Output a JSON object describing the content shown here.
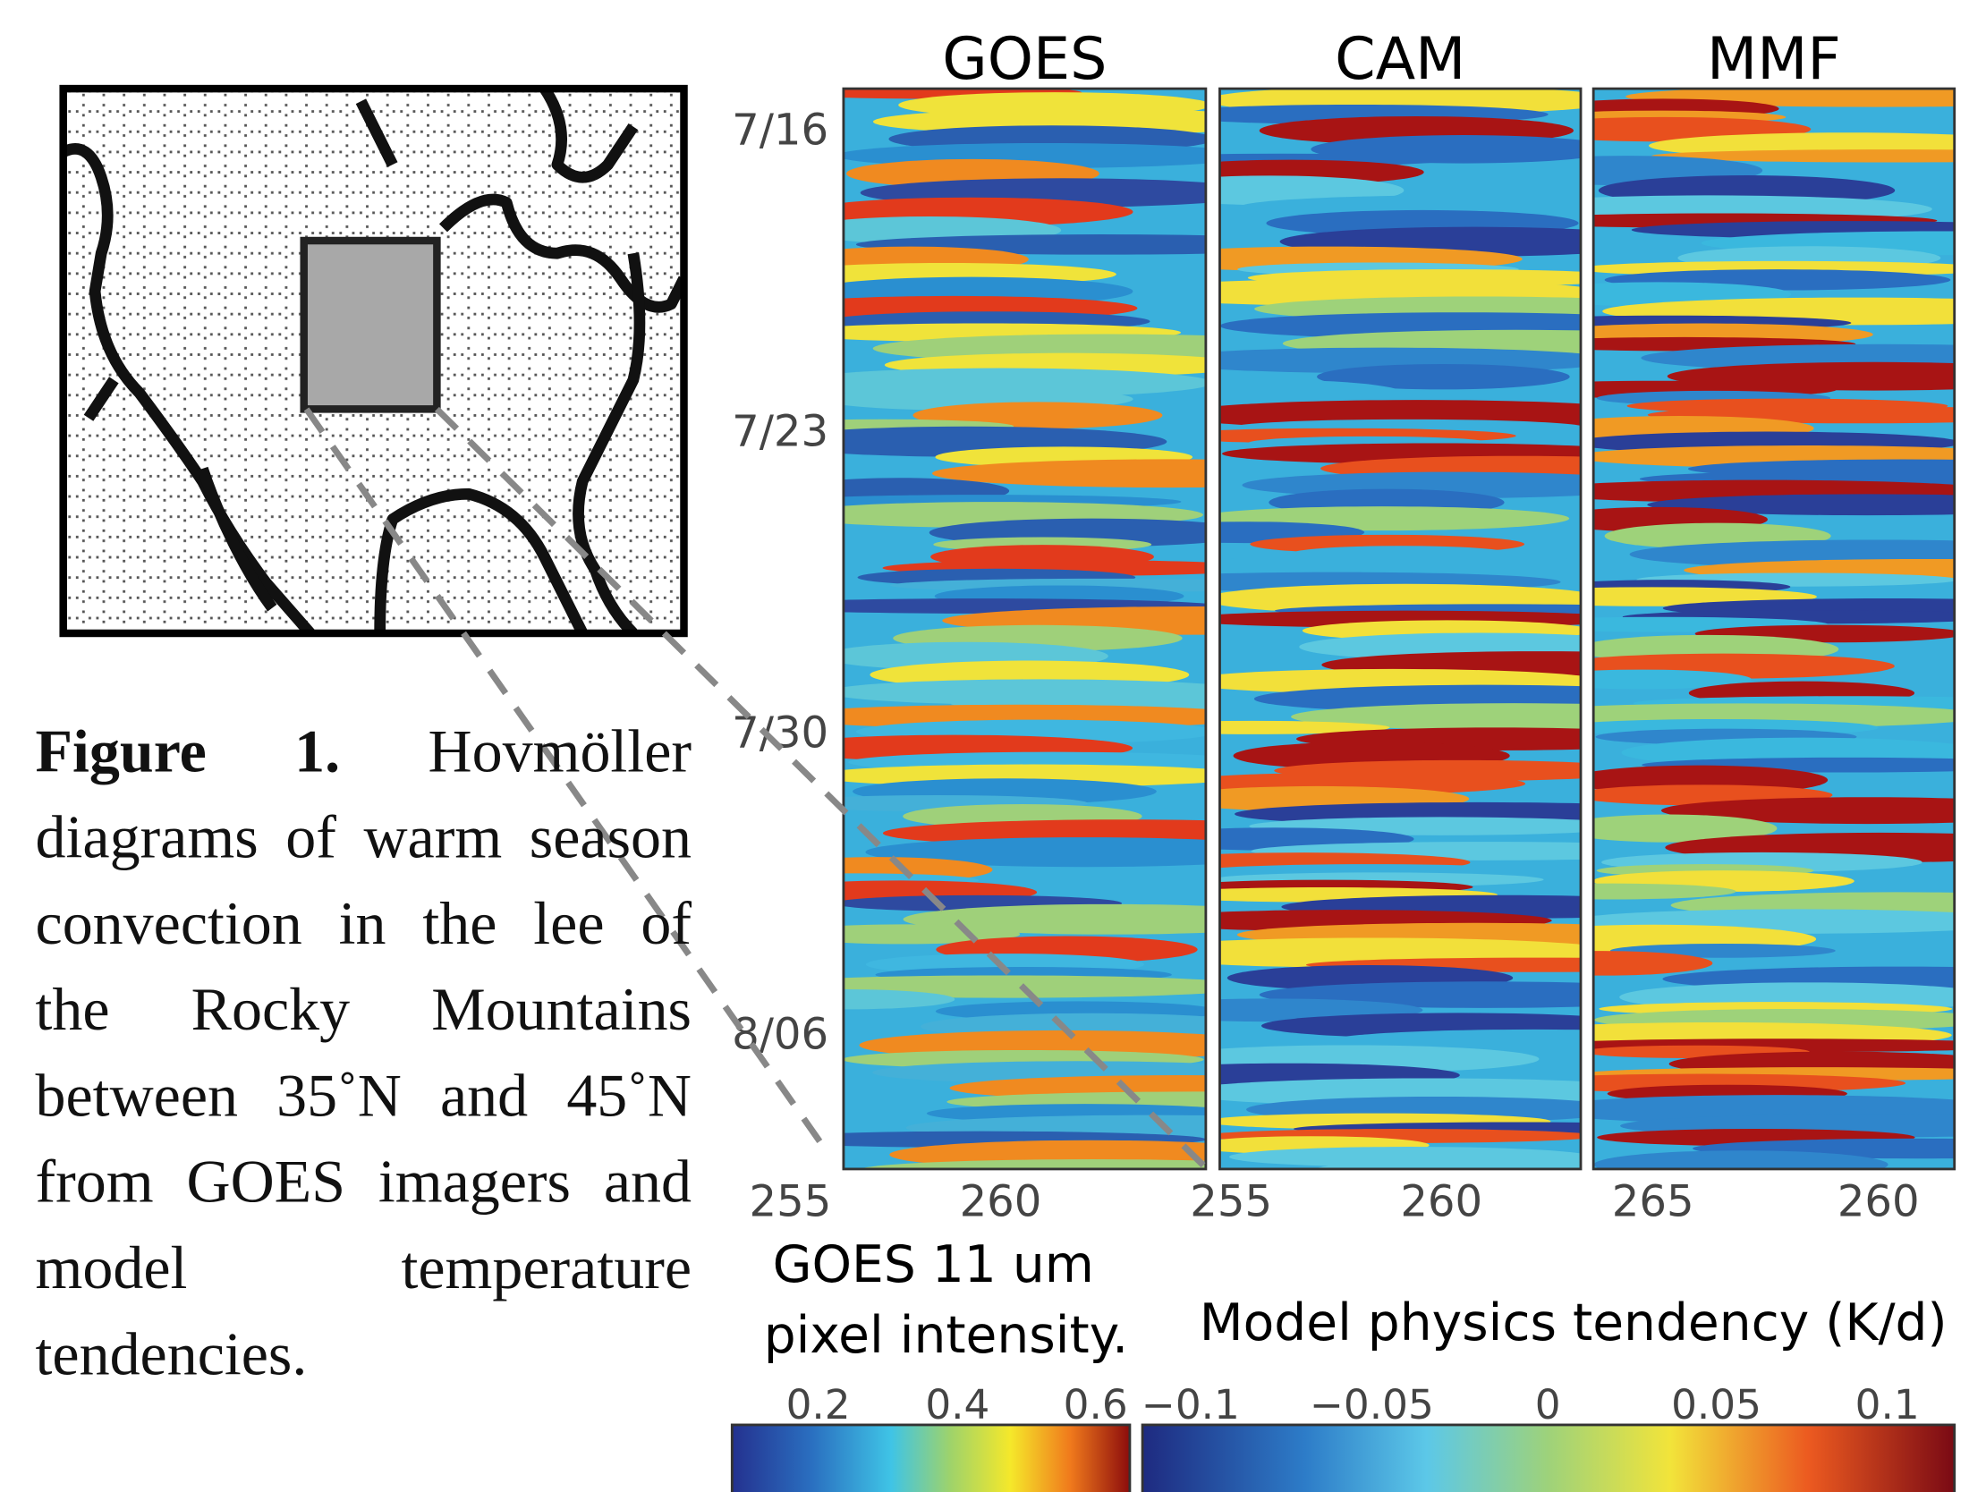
{
  "figure": {
    "panels": [
      {
        "title": "GOES",
        "xticks": [
          "255",
          "260"
        ]
      },
      {
        "title": "CAM",
        "xticks": [
          "255",
          "260"
        ]
      },
      {
        "title": "MMF",
        "xticks": [
          "265",
          "260"
        ]
      }
    ],
    "yticks": [
      "7/16",
      "7/23",
      "7/30",
      "8/06"
    ],
    "colorbars": [
      {
        "label_lines": [
          "GOES 11 um",
          "pixel intensity."
        ],
        "ticks": [
          "0.2",
          "0.4",
          "0.6"
        ]
      },
      {
        "label": "Model physics tendency (K/d)",
        "ticks": [
          "−0.1",
          "−0.05",
          "0",
          "0.05",
          "0.1"
        ]
      }
    ],
    "caption": {
      "label": "Figure 1.",
      "text": "Hovmöller diagrams of warm season convection in the lee of the Rocky Mountains between 35˚N and 45˚N from GOES imagers and model temperature tendencies."
    }
  }
}
